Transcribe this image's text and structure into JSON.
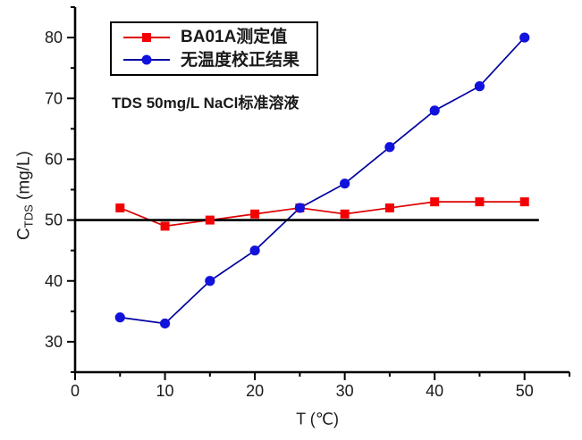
{
  "figure": {
    "annotation": "TDS 50mg/L NaCl标准溶液",
    "xlabel": "T (℃)",
    "ylabel": {
      "main": "C",
      "sub": "TDS",
      "rest": " (mg/L)"
    }
  },
  "chart_data": {
    "type": "line",
    "title": "",
    "xlabel": "T (℃)",
    "ylabel": "C_TDS (mg/L)",
    "annotation": "TDS 50mg/L NaCl标准溶液",
    "x": [
      5,
      10,
      15,
      20,
      25,
      30,
      35,
      40,
      45,
      50
    ],
    "series": [
      {
        "name": "BA01A测定值",
        "marker": "square",
        "line_color": "#dd0000",
        "marker_color": "#f40000",
        "values": [
          52,
          49,
          50,
          51,
          52,
          51,
          52,
          53,
          53,
          53
        ]
      },
      {
        "name": "无温度校正结果",
        "marker": "circle",
        "line_color": "#0000a0",
        "marker_color": "#1212dd",
        "values": [
          34,
          33,
          40,
          45,
          52,
          56,
          62,
          68,
          72,
          80
        ]
      }
    ],
    "reference_line": {
      "y": 50,
      "x_start": 0,
      "x_end": 51.6,
      "color": "#000000"
    },
    "xlim": [
      0,
      55
    ],
    "ylim": [
      25,
      85
    ],
    "x_major_ticks": [
      0,
      10,
      20,
      30,
      40,
      50
    ],
    "x_minor_ticks": [
      5,
      15,
      25,
      35,
      45,
      55
    ],
    "y_major_ticks": [
      30,
      40,
      50,
      60,
      70,
      80
    ],
    "y_minor_ticks": [
      25,
      35,
      45,
      55,
      65,
      75,
      85
    ],
    "grid": false,
    "legend_position": "top-left-inside",
    "axis_color": "#000000",
    "tick_label_color": "#1a1a1a"
  }
}
